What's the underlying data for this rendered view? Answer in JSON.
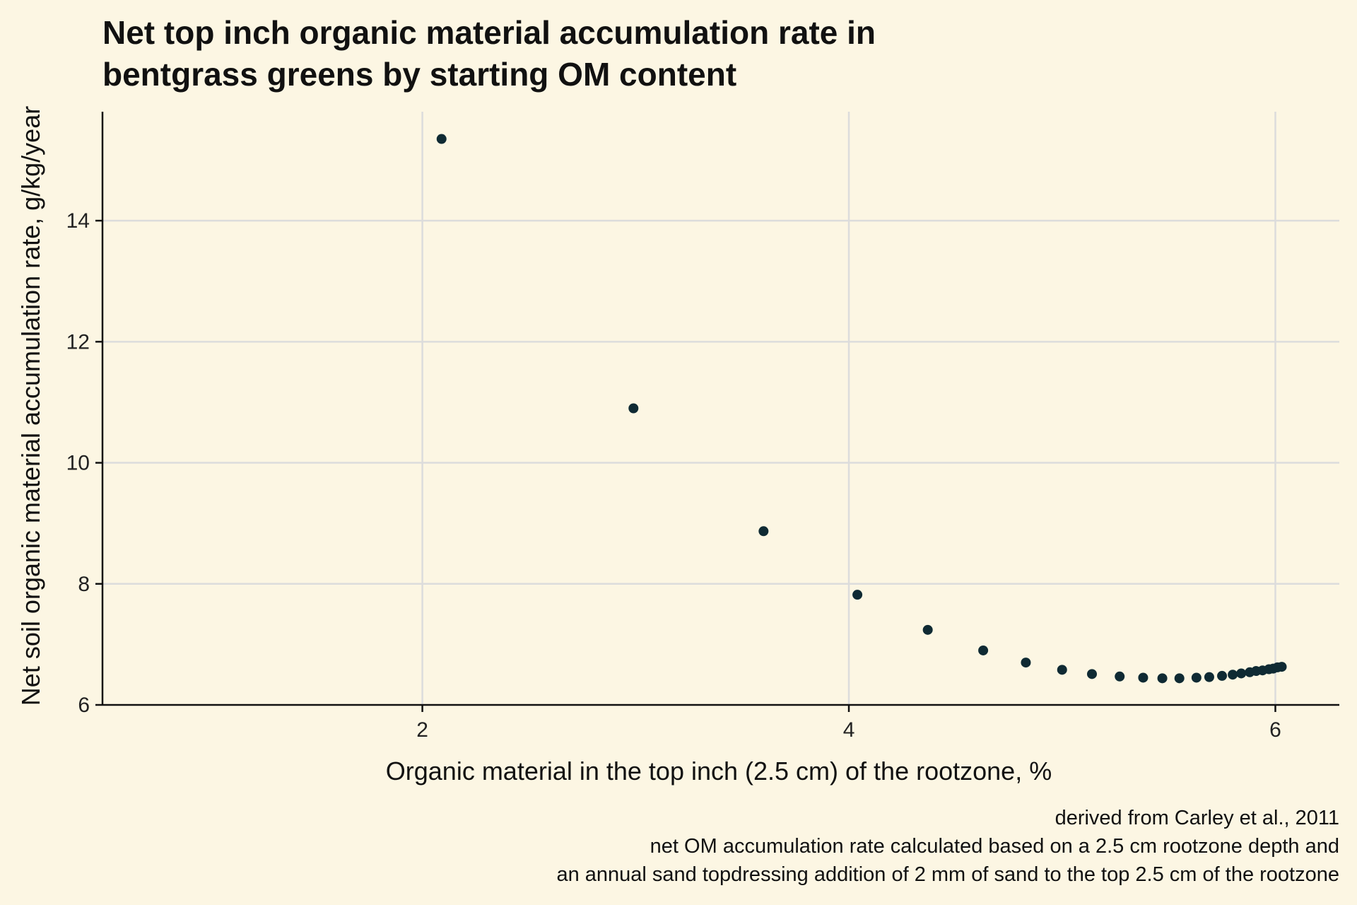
{
  "chart_data": {
    "type": "scatter",
    "title_lines": [
      "Net top inch organic material accumulation rate in",
      "bentgrass greens by starting OM content"
    ],
    "xlabel": "Organic material in the top inch (2.5 cm) of the rootzone, %",
    "ylabel": "Net soil organic material accumulation rate, g/kg/year",
    "caption_lines": [
      "derived from Carley et al., 2011",
      "net OM accumulation rate calculated based on a 2.5 cm rootzone depth and",
      "an annual sand topdressing addition of 2 mm of sand to the top 2.5 cm of the rootzone"
    ],
    "xlim": [
      0.5,
      6.3
    ],
    "ylim": [
      6,
      15.8
    ],
    "xticks": [
      2,
      4,
      6
    ],
    "yticks": [
      6,
      8,
      10,
      12,
      14
    ],
    "grid": true,
    "point_color": "#0f2a33",
    "background": "#fcf6e3",
    "x": [
      2.09,
      2.99,
      3.6,
      4.04,
      4.37,
      4.63,
      4.83,
      5.0,
      5.14,
      5.27,
      5.38,
      5.47,
      5.55,
      5.63,
      5.69,
      5.75,
      5.8,
      5.84,
      5.88,
      5.91,
      5.94,
      5.97,
      5.99,
      6.01,
      6.03
    ],
    "y": [
      15.35,
      10.9,
      8.87,
      7.82,
      7.24,
      6.9,
      6.7,
      6.58,
      6.51,
      6.47,
      6.45,
      6.44,
      6.44,
      6.45,
      6.46,
      6.48,
      6.5,
      6.52,
      6.54,
      6.56,
      6.57,
      6.59,
      6.6,
      6.62,
      6.63
    ]
  }
}
